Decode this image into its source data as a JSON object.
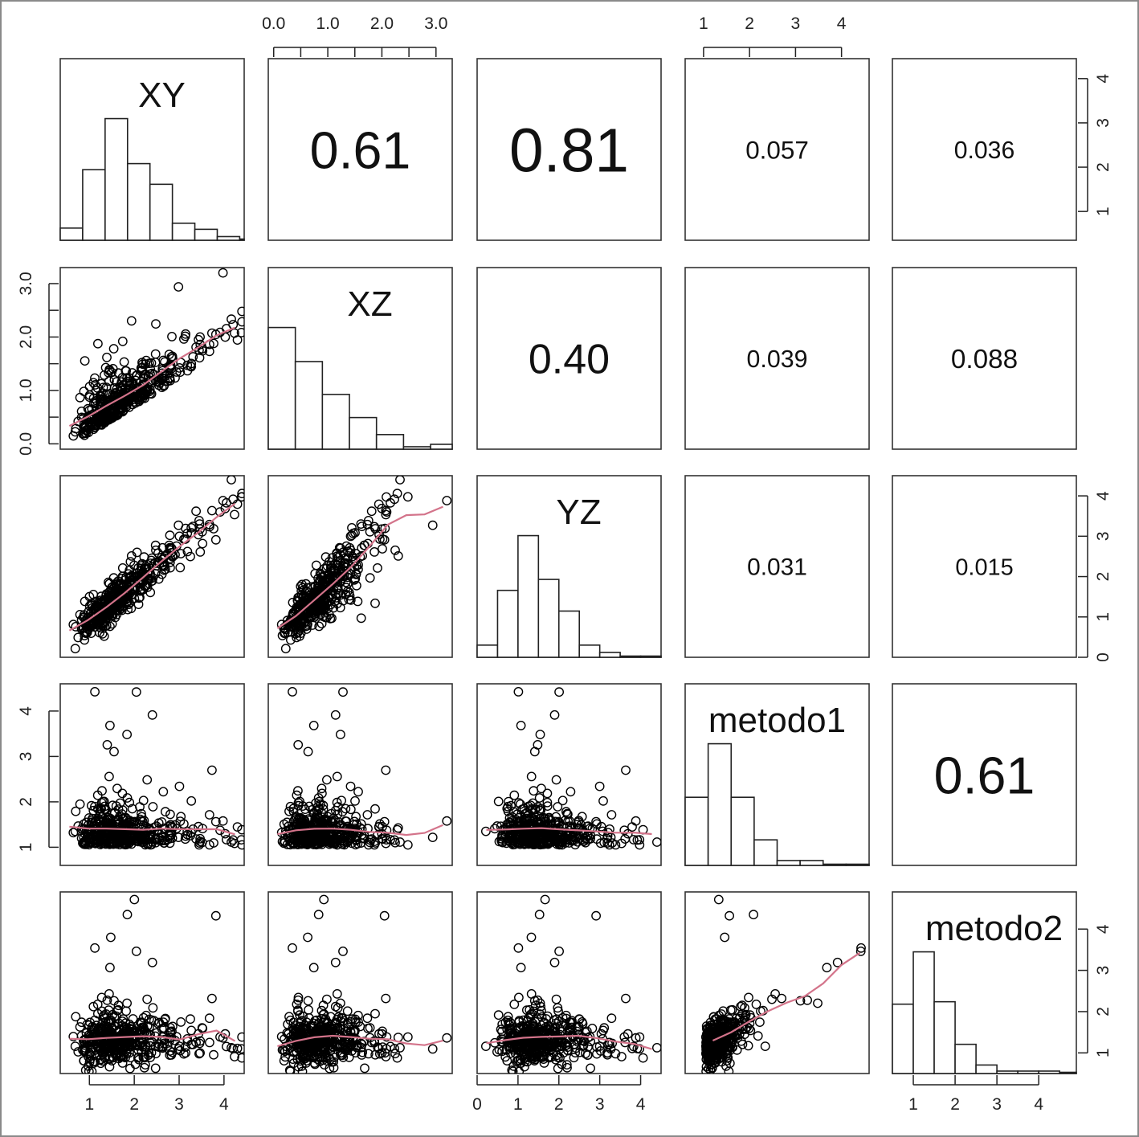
{
  "chart_data": {
    "type": "scatter-matrix",
    "variables": [
      "XY",
      "XZ",
      "YZ",
      "metodo1",
      "metodo2"
    ],
    "axis_ranges": {
      "XY": [
        0.35,
        4.45
      ],
      "XZ": [
        -0.1,
        3.3
      ],
      "YZ": [
        0.0,
        4.5
      ],
      "metodo1": [
        0.6,
        4.6
      ],
      "metodo2": [
        0.5,
        4.9
      ]
    },
    "axis_ticks": {
      "top": [
        {
          "variable": "XZ",
          "ticks": [
            {
              "value": 0.0,
              "label": "0.0"
            },
            {
              "value": 1.0,
              "label": "1.0"
            },
            {
              "value": 2.0,
              "label": "2.0"
            },
            {
              "value": 3.0,
              "label": "3.0"
            }
          ],
          "minor": [
            0.5,
            1.5,
            2.5
          ]
        },
        {
          "variable": "metodo1",
          "ticks": [
            {
              "value": 1,
              "label": "1"
            },
            {
              "value": 2,
              "label": "2"
            },
            {
              "value": 3,
              "label": "3"
            },
            {
              "value": 4,
              "label": "4"
            }
          ],
          "minor": []
        }
      ],
      "bottom": [
        {
          "variable": "XY",
          "ticks": [
            {
              "value": 1,
              "label": "1"
            },
            {
              "value": 2,
              "label": "2"
            },
            {
              "value": 3,
              "label": "3"
            },
            {
              "value": 4,
              "label": "4"
            }
          ]
        },
        {
          "variable": "YZ",
          "ticks": [
            {
              "value": 0,
              "label": "0"
            },
            {
              "value": 1,
              "label": "1"
            },
            {
              "value": 2,
              "label": "2"
            },
            {
              "value": 3,
              "label": "3"
            },
            {
              "value": 4,
              "label": "4"
            }
          ]
        },
        {
          "variable": "metodo2",
          "ticks": [
            {
              "value": 1,
              "label": "1"
            },
            {
              "value": 2,
              "label": "2"
            },
            {
              "value": 3,
              "label": "3"
            },
            {
              "value": 4,
              "label": "4"
            }
          ]
        }
      ],
      "left": [
        {
          "variable": "XZ",
          "ticks": [
            {
              "value": 0.0,
              "label": "0.0"
            },
            {
              "value": 1.0,
              "label": "1.0"
            },
            {
              "value": 2.0,
              "label": "2.0"
            },
            {
              "value": 3.0,
              "label": "3.0"
            }
          ],
          "minor": [
            0.5,
            1.5,
            2.5
          ]
        },
        {
          "variable": "metodo1",
          "ticks": [
            {
              "value": 1,
              "label": "1"
            },
            {
              "value": 2,
              "label": "2"
            },
            {
              "value": 3,
              "label": "3"
            },
            {
              "value": 4,
              "label": "4"
            }
          ],
          "minor": []
        }
      ],
      "right": [
        {
          "variable": "XY",
          "ticks": [
            {
              "value": 1,
              "label": "1"
            },
            {
              "value": 2,
              "label": "2"
            },
            {
              "value": 3,
              "label": "3"
            },
            {
              "value": 4,
              "label": "4"
            }
          ]
        },
        {
          "variable": "YZ",
          "ticks": [
            {
              "value": 0,
              "label": "0"
            },
            {
              "value": 1,
              "label": "1"
            },
            {
              "value": 2,
              "label": "2"
            },
            {
              "value": 3,
              "label": "3"
            },
            {
              "value": 4,
              "label": "4"
            }
          ]
        },
        {
          "variable": "metodo2",
          "ticks": [
            {
              "value": 1,
              "label": "1"
            },
            {
              "value": 2,
              "label": "2"
            },
            {
              "value": 3,
              "label": "3"
            },
            {
              "value": 4,
              "label": "4"
            }
          ]
        }
      ]
    },
    "correlations": [
      {
        "row": "XY",
        "col": "XZ",
        "label": "0.61",
        "value": 0.61
      },
      {
        "row": "XY",
        "col": "YZ",
        "label": "0.81",
        "value": 0.81
      },
      {
        "row": "XY",
        "col": "metodo1",
        "label": "0.057",
        "value": 0.057
      },
      {
        "row": "XY",
        "col": "metodo2",
        "label": "0.036",
        "value": 0.036
      },
      {
        "row": "XZ",
        "col": "YZ",
        "label": "0.40",
        "value": 0.4
      },
      {
        "row": "XZ",
        "col": "metodo1",
        "label": "0.039",
        "value": 0.039
      },
      {
        "row": "XZ",
        "col": "metodo2",
        "label": "0.088",
        "value": 0.088
      },
      {
        "row": "YZ",
        "col": "metodo1",
        "label": "0.031",
        "value": 0.031
      },
      {
        "row": "YZ",
        "col": "metodo2",
        "label": "0.015",
        "value": 0.015
      },
      {
        "row": "metodo1",
        "col": "metodo2",
        "label": "0.61",
        "value": 0.61
      }
    ],
    "histograms": {
      "XY": {
        "start": 0.35,
        "width": 0.5,
        "counts": [
          0.1,
          0.58,
          1.0,
          0.63,
          0.46,
          0.14,
          0.09,
          0.03,
          0.01
        ]
      },
      "XZ": {
        "start": -0.1,
        "width": 0.5,
        "counts": [
          1.0,
          0.72,
          0.45,
          0.26,
          0.12,
          0.02,
          0.04
        ]
      },
      "YZ": {
        "start": 0.0,
        "width": 0.5,
        "counts": [
          0.1,
          0.55,
          1.0,
          0.64,
          0.38,
          0.1,
          0.04,
          0.01,
          0.01
        ]
      },
      "metodo1": {
        "start": 0.6,
        "width": 0.5,
        "counts": [
          0.56,
          1.0,
          0.56,
          0.21,
          0.04,
          0.04,
          0.01,
          0.01
        ]
      },
      "metodo2": {
        "start": 0.5,
        "width": 0.5,
        "counts": [
          0.57,
          1.0,
          0.59,
          0.24,
          0.07,
          0.02,
          0.02,
          0.02,
          0.01
        ]
      }
    },
    "smooth_color": "#d3738a",
    "point_color": "#000000",
    "grid": false,
    "legend": "none"
  }
}
